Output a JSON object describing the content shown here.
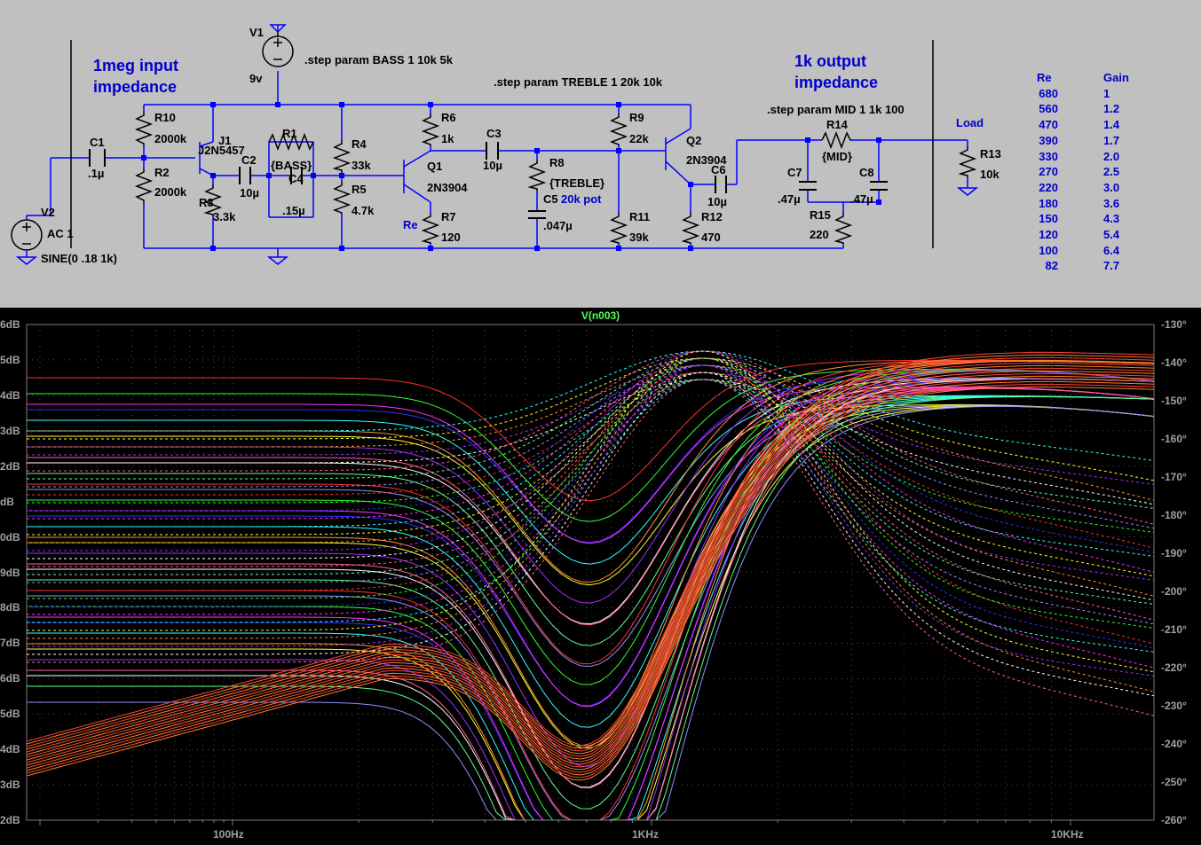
{
  "schematic": {
    "components": {
      "V1": "V1",
      "V1_value": "9v",
      "V2": "V2",
      "V2_value": "AC 1",
      "V2_sine": "SINE(0 .18 1k)",
      "C1": "C1",
      "C1_value": ".1µ",
      "R10": "R10",
      "R10_value": "2000k",
      "R2": "R2",
      "R2_value": "2000k",
      "J1": "J1",
      "J1_model": "J2N5457",
      "R3": "R3",
      "R3_value": "3.3k",
      "C2": "C2",
      "C2_value": "10µ",
      "R1": "R1",
      "R1_value": "{BASS}",
      "C4": "C4",
      "C4_value": ".15µ",
      "R4": "R4",
      "R4_value": "33k",
      "R5": "R5",
      "R5_value": "4.7k",
      "R6": "R6",
      "R6_value": "1k",
      "Q1": "Q1",
      "Q1_model": "2N3904",
      "R7": "R7",
      "R7_value": "120",
      "Re": "Re",
      "C3": "C3",
      "C3_value": "10µ",
      "R8": "R8",
      "R8_value": "{TREBLE}",
      "C5": "C5",
      "C5_value": ".047µ",
      "pot_note": "20k pot",
      "R9": "R9",
      "R9_value": "22k",
      "R11": "R11",
      "R11_value": "39k",
      "Q2": "Q2",
      "Q2_model": "2N3904",
      "C6": "C6",
      "C6_value": "10µ",
      "R12": "R12",
      "R12_value": "470",
      "R14": "R14",
      "R14_value": "{MID}",
      "C7": "C7",
      "C7_value": ".47µ",
      "C8": "C8",
      "C8_value": ".47µ",
      "R15": "R15",
      "R15_value": "220",
      "R13": "R13",
      "R13_value": "10k",
      "Load": "Load"
    },
    "directives": {
      "bass": ".step param BASS 1 10k 5k",
      "treble": ".step param TREBLE 1 20k 10k",
      "mid": ".step param MID 1 1k 100"
    },
    "notes": {
      "input_line1": "1meg input",
      "input_line2": "impedance",
      "output_line1": "1k output",
      "output_line2": "impedance"
    },
    "table": {
      "headers": [
        "Re",
        "Gain"
      ],
      "rows": [
        [
          "680",
          "1"
        ],
        [
          "560",
          "1.2"
        ],
        [
          "470",
          "1.4"
        ],
        [
          "390",
          "1.7"
        ],
        [
          "330",
          "2.0"
        ],
        [
          "270",
          "2.5"
        ],
        [
          "220",
          "3.0"
        ],
        [
          "180",
          "3.6"
        ],
        [
          "150",
          "4.3"
        ],
        [
          "120",
          "5.4"
        ],
        [
          "100",
          "6.4"
        ],
        [
          "82",
          "7.7"
        ]
      ]
    }
  },
  "plot": {
    "trace_name": "V(n003)",
    "colors": {
      "background": "#000000",
      "grid": "#7a7a7a",
      "axis_text": "#a0a0a0",
      "title": "#55ff55"
    },
    "left_ticks": [
      "6dB",
      "5dB",
      "4dB",
      "3dB",
      "2dB",
      "dB",
      "0dB",
      "9dB",
      "8dB",
      "7dB",
      "6dB",
      "5dB",
      "4dB",
      "3dB",
      "2dB"
    ],
    "right_ticks": [
      "-130°",
      "-140°",
      "-150°",
      "-160°",
      "-170°",
      "-180°",
      "-190°",
      "-200°",
      "-210°",
      "-220°",
      "-230°",
      "-240°",
      "-250°",
      "-260°"
    ],
    "x_ticks": [
      "100Hz",
      "1KHz",
      "10KHz"
    ]
  }
}
